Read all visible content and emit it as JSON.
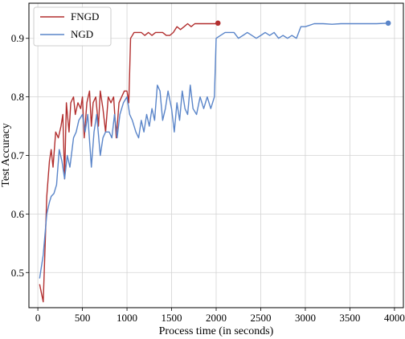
{
  "chart_data": {
    "type": "line",
    "xlabel": "Process time (in seconds)",
    "ylabel": "Test Accuracy",
    "xlim": [
      -100,
      4100
    ],
    "ylim": [
      0.44,
      0.96
    ],
    "xticks": [
      0,
      500,
      1000,
      1500,
      2000,
      2500,
      3000,
      3500,
      4000
    ],
    "yticks": [
      0.5,
      0.6,
      0.7,
      0.8,
      0.9
    ],
    "grid": true,
    "legend_position": "top-left",
    "series": [
      {
        "name": "FNGD",
        "color": "#b22f2f",
        "end_marker": true,
        "points": [
          [
            20,
            0.48
          ],
          [
            60,
            0.45
          ],
          [
            100,
            0.63
          ],
          [
            130,
            0.69
          ],
          [
            150,
            0.71
          ],
          [
            170,
            0.68
          ],
          [
            200,
            0.74
          ],
          [
            230,
            0.73
          ],
          [
            260,
            0.75
          ],
          [
            280,
            0.77
          ],
          [
            300,
            0.66
          ],
          [
            320,
            0.79
          ],
          [
            350,
            0.74
          ],
          [
            370,
            0.79
          ],
          [
            400,
            0.8
          ],
          [
            420,
            0.77
          ],
          [
            450,
            0.79
          ],
          [
            480,
            0.78
          ],
          [
            500,
            0.8
          ],
          [
            520,
            0.73
          ],
          [
            550,
            0.79
          ],
          [
            580,
            0.81
          ],
          [
            600,
            0.75
          ],
          [
            620,
            0.79
          ],
          [
            650,
            0.8
          ],
          [
            680,
            0.75
          ],
          [
            700,
            0.81
          ],
          [
            730,
            0.78
          ],
          [
            760,
            0.74
          ],
          [
            790,
            0.8
          ],
          [
            820,
            0.79
          ],
          [
            850,
            0.8
          ],
          [
            880,
            0.73
          ],
          [
            910,
            0.79
          ],
          [
            940,
            0.8
          ],
          [
            970,
            0.81
          ],
          [
            1000,
            0.81
          ],
          [
            1020,
            0.79
          ],
          [
            1040,
            0.9
          ],
          [
            1080,
            0.91
          ],
          [
            1120,
            0.91
          ],
          [
            1160,
            0.91
          ],
          [
            1200,
            0.905
          ],
          [
            1240,
            0.91
          ],
          [
            1280,
            0.905
          ],
          [
            1320,
            0.91
          ],
          [
            1360,
            0.91
          ],
          [
            1400,
            0.91
          ],
          [
            1440,
            0.905
          ],
          [
            1480,
            0.905
          ],
          [
            1520,
            0.91
          ],
          [
            1560,
            0.92
          ],
          [
            1600,
            0.915
          ],
          [
            1640,
            0.92
          ],
          [
            1680,
            0.925
          ],
          [
            1720,
            0.92
          ],
          [
            1760,
            0.925
          ],
          [
            1800,
            0.925
          ],
          [
            1850,
            0.925
          ],
          [
            1900,
            0.925
          ],
          [
            1950,
            0.925
          ],
          [
            2000,
            0.925
          ],
          [
            2020,
            0.926
          ]
        ]
      },
      {
        "name": "NGD",
        "color": "#5a85c9",
        "end_marker": true,
        "points": [
          [
            20,
            0.49
          ],
          [
            60,
            0.53
          ],
          [
            100,
            0.6
          ],
          [
            130,
            0.62
          ],
          [
            150,
            0.63
          ],
          [
            180,
            0.635
          ],
          [
            210,
            0.65
          ],
          [
            240,
            0.71
          ],
          [
            270,
            0.69
          ],
          [
            300,
            0.66
          ],
          [
            330,
            0.7
          ],
          [
            360,
            0.68
          ],
          [
            400,
            0.73
          ],
          [
            430,
            0.74
          ],
          [
            460,
            0.76
          ],
          [
            500,
            0.77
          ],
          [
            530,
            0.74
          ],
          [
            560,
            0.77
          ],
          [
            600,
            0.68
          ],
          [
            630,
            0.74
          ],
          [
            660,
            0.77
          ],
          [
            700,
            0.7
          ],
          [
            730,
            0.73
          ],
          [
            760,
            0.74
          ],
          [
            800,
            0.74
          ],
          [
            830,
            0.73
          ],
          [
            860,
            0.77
          ],
          [
            890,
            0.73
          ],
          [
            920,
            0.77
          ],
          [
            960,
            0.79
          ],
          [
            1000,
            0.8
          ],
          [
            1030,
            0.77
          ],
          [
            1060,
            0.76
          ],
          [
            1100,
            0.74
          ],
          [
            1130,
            0.73
          ],
          [
            1160,
            0.76
          ],
          [
            1190,
            0.74
          ],
          [
            1220,
            0.77
          ],
          [
            1250,
            0.75
          ],
          [
            1280,
            0.78
          ],
          [
            1310,
            0.76
          ],
          [
            1340,
            0.82
          ],
          [
            1370,
            0.81
          ],
          [
            1400,
            0.76
          ],
          [
            1430,
            0.78
          ],
          [
            1460,
            0.81
          ],
          [
            1500,
            0.78
          ],
          [
            1530,
            0.74
          ],
          [
            1560,
            0.79
          ],
          [
            1590,
            0.76
          ],
          [
            1620,
            0.81
          ],
          [
            1650,
            0.78
          ],
          [
            1680,
            0.77
          ],
          [
            1710,
            0.82
          ],
          [
            1740,
            0.78
          ],
          [
            1780,
            0.77
          ],
          [
            1820,
            0.8
          ],
          [
            1860,
            0.78
          ],
          [
            1900,
            0.8
          ],
          [
            1940,
            0.78
          ],
          [
            1980,
            0.8
          ],
          [
            2000,
            0.9
          ],
          [
            2050,
            0.905
          ],
          [
            2100,
            0.91
          ],
          [
            2150,
            0.91
          ],
          [
            2200,
            0.91
          ],
          [
            2250,
            0.9
          ],
          [
            2300,
            0.905
          ],
          [
            2350,
            0.91
          ],
          [
            2400,
            0.905
          ],
          [
            2450,
            0.9
          ],
          [
            2500,
            0.905
          ],
          [
            2550,
            0.91
          ],
          [
            2600,
            0.905
          ],
          [
            2650,
            0.91
          ],
          [
            2700,
            0.9
          ],
          [
            2750,
            0.905
          ],
          [
            2800,
            0.9
          ],
          [
            2850,
            0.905
          ],
          [
            2900,
            0.9
          ],
          [
            2950,
            0.92
          ],
          [
            3000,
            0.92
          ],
          [
            3100,
            0.925
          ],
          [
            3200,
            0.925
          ],
          [
            3300,
            0.924
          ],
          [
            3400,
            0.925
          ],
          [
            3500,
            0.925
          ],
          [
            3600,
            0.925
          ],
          [
            3700,
            0.925
          ],
          [
            3800,
            0.925
          ],
          [
            3930,
            0.926
          ]
        ]
      }
    ]
  }
}
